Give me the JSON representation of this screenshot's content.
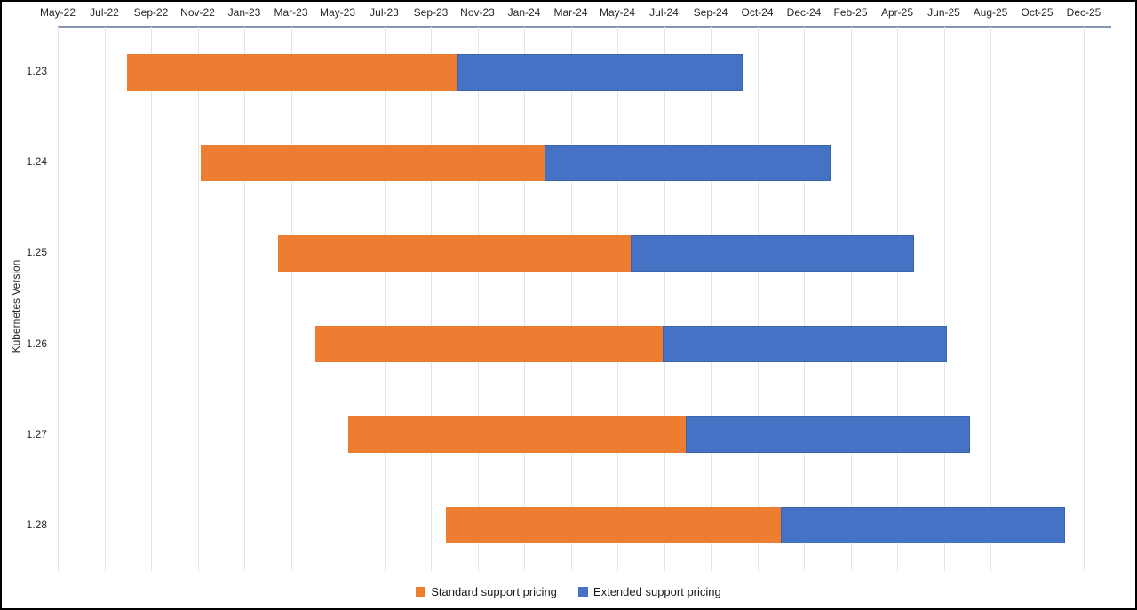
{
  "chart_data": {
    "type": "bar",
    "subtype": "horizontal-stacked-gantt",
    "title": "",
    "ylabel": "Kubernetes Version",
    "grid": true,
    "legend_position": "bottom-center",
    "x_axis": {
      "position": "top",
      "tick_labels": [
        "May-22",
        "Jul-22",
        "Sep-22",
        "Nov-22",
        "Jan-23",
        "Mar-23",
        "May-23",
        "Jul-23",
        "Sep-23",
        "Nov-23",
        "Jan-24",
        "Mar-24",
        "May-24",
        "Jul-24",
        "Sep-24",
        "Oct-24",
        "Dec-24",
        "Feb-25",
        "Apr-25",
        "Jun-25",
        "Aug-25",
        "Oct-25",
        "Dec-25"
      ]
    },
    "y_axis": {
      "categories": [
        "1.23",
        "1.24",
        "1.25",
        "1.26",
        "1.27",
        "1.28"
      ]
    },
    "legend_items": [
      {
        "label": "Standard support pricing",
        "color": "#ED7D31"
      },
      {
        "label": "Extended support pricing",
        "color": "#4472C4"
      }
    ],
    "colors": {
      "standard": "#ED7D31",
      "extended": "#4472C4",
      "axis_line": "#8496B0",
      "gridline": "#e4e4e4",
      "text": "#262626"
    },
    "rows": [
      {
        "version": "1.23",
        "standard_start": "Aug-22",
        "standard_end": "Oct-23",
        "extended_end": "Oct-24",
        "ticks": {
          "start": 1.49,
          "mid": 8.57,
          "end": 14.69
        }
      },
      {
        "version": "1.24",
        "standard_start": "Nov-22",
        "standard_end": "Jan-24",
        "extended_end": "Jan-25",
        "ticks": {
          "start": 3.07,
          "mid": 10.44,
          "end": 16.57
        }
      },
      {
        "version": "1.25",
        "standard_start": "Feb-23",
        "standard_end": "May-24",
        "extended_end": "May-25",
        "ticks": {
          "start": 4.72,
          "mid": 12.29,
          "end": 18.36
        }
      },
      {
        "version": "1.26",
        "standard_start": "Apr-23",
        "standard_end": "Jun-24",
        "extended_end": "Jun-25",
        "ticks": {
          "start": 5.52,
          "mid": 12.97,
          "end": 19.07
        }
      },
      {
        "version": "1.27",
        "standard_start": "May-23",
        "standard_end": "Jul-24",
        "extended_end": "Jul-25",
        "ticks": {
          "start": 6.23,
          "mid": 13.47,
          "end": 19.56
        }
      },
      {
        "version": "1.28",
        "standard_start": "Sep-23",
        "standard_end": "Nov-24",
        "extended_end": "Nov-25",
        "ticks": {
          "start": 8.32,
          "mid": 15.51,
          "end": 21.6
        }
      }
    ]
  }
}
